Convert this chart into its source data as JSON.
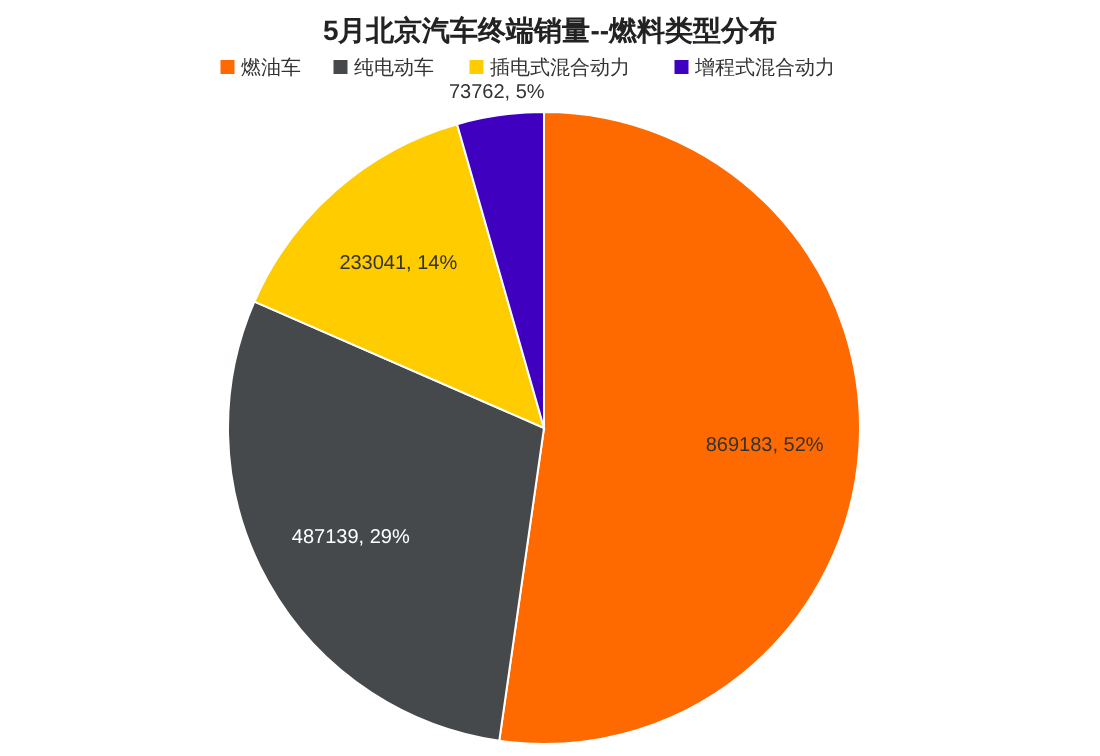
{
  "chart_data": {
    "type": "pie",
    "title": "5月北京汽车终端销量--燃料类型分布",
    "categories": [
      "燃油车",
      "纯电动车",
      "插电式混合动力",
      "增程式混合动力"
    ],
    "values": [
      869183,
      487139,
      233041,
      73762
    ],
    "colors": [
      "#ff6a00",
      "#45494b",
      "#ffcc00",
      "#4000c0"
    ],
    "value_labels": [
      "869183, 52%",
      "487139, 29%",
      "233041, 14%",
      "73762, 5%"
    ],
    "legend": "top"
  }
}
